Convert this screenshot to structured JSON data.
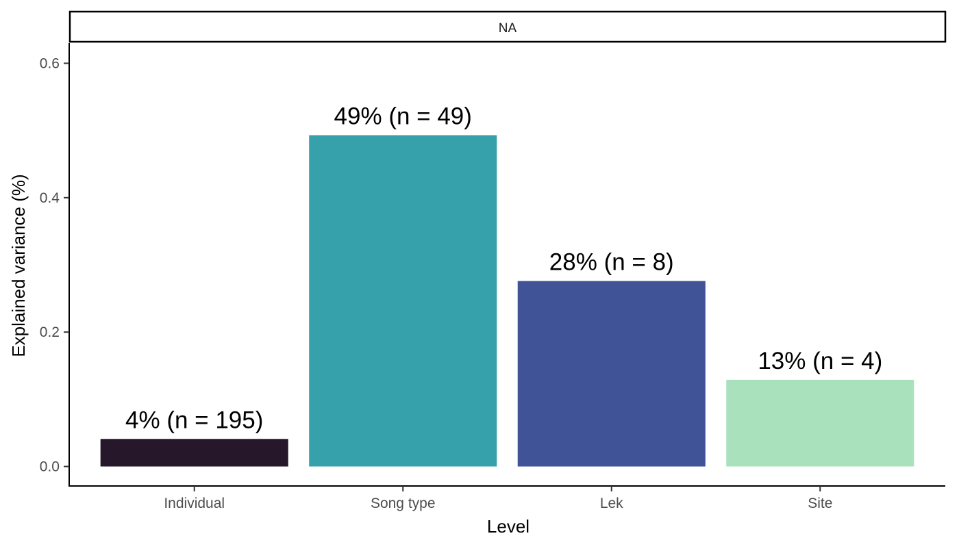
{
  "chart_data": {
    "type": "bar",
    "facet_label": "NA",
    "categories": [
      "Individual",
      "Song type",
      "Lek",
      "Site"
    ],
    "values": [
      0.041,
      0.493,
      0.276,
      0.129
    ],
    "labels": [
      "4% (n = 195)",
      "49% (n = 49)",
      "28% (n = 8)",
      "13% (n = 4)"
    ],
    "colors": [
      "#26172B",
      "#37A1AB",
      "#3F5396",
      "#AAE1BD"
    ],
    "xlabel": "Level",
    "ylabel": "Explained variance (%)",
    "yticks": [
      "0.0",
      "0.2",
      "0.4",
      "0.6"
    ],
    "ytick_values": [
      0,
      0.2,
      0.4,
      0.6
    ],
    "ylim": [
      -0.029,
      0.63
    ],
    "grid": false,
    "legend": "none"
  }
}
